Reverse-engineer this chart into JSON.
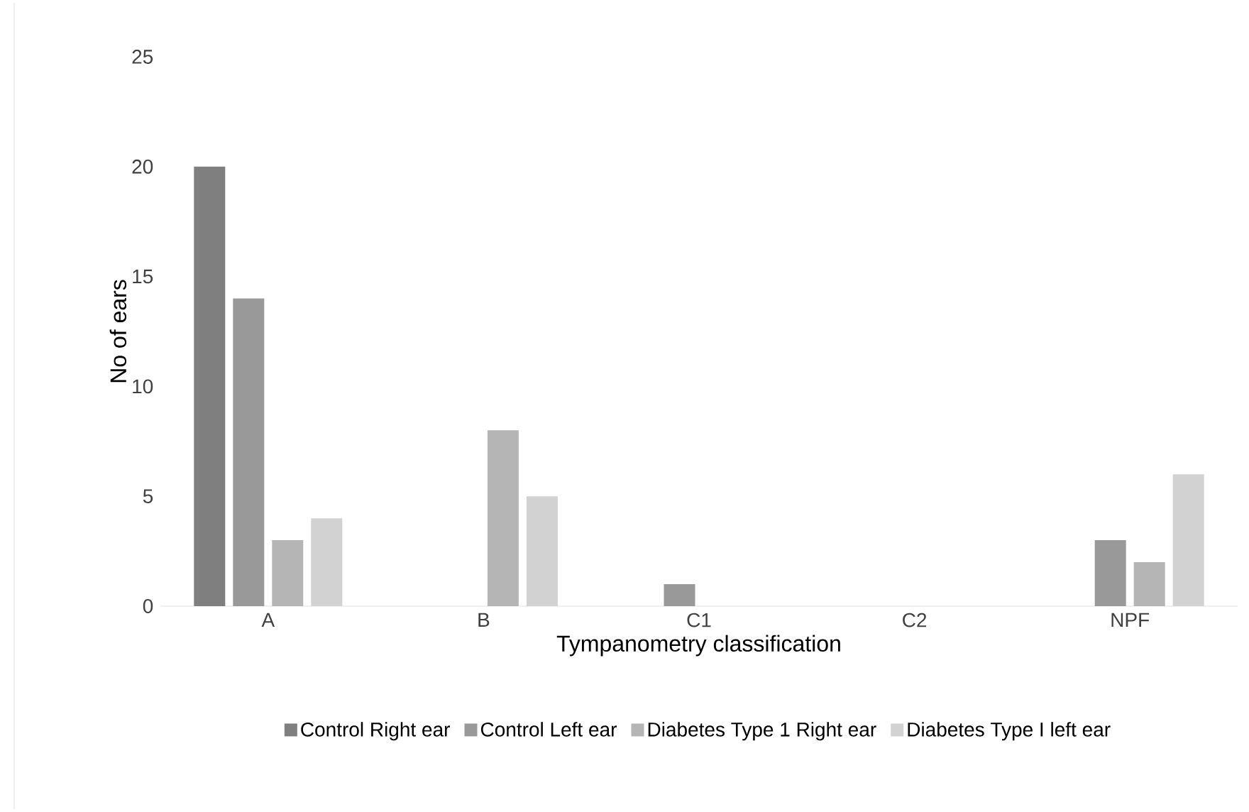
{
  "chart_data": {
    "type": "bar",
    "xlabel": "Tympanometry classification",
    "ylabel": "No of ears",
    "categories": [
      "A",
      "B",
      "C1",
      "C2",
      "NPF"
    ],
    "series": [
      {
        "name": "Control Right ear",
        "color": "#7f7f7f",
        "values": [
          20,
          0,
          0,
          0,
          0
        ]
      },
      {
        "name": "Control Left ear",
        "color": "#999999",
        "values": [
          14,
          0,
          1,
          0,
          3
        ]
      },
      {
        "name": "Diabetes Type 1 Right ear",
        "color": "#b5b5b5",
        "values": [
          3,
          8,
          0,
          0,
          2
        ]
      },
      {
        "name": "Diabetes Type I left ear",
        "color": "#d2d2d2",
        "values": [
          4,
          5,
          0,
          0,
          6
        ]
      }
    ],
    "ylim": [
      0,
      25
    ],
    "yticks": [
      0,
      5,
      10,
      15,
      20,
      25
    ],
    "grid": false,
    "legend": "bottom"
  }
}
